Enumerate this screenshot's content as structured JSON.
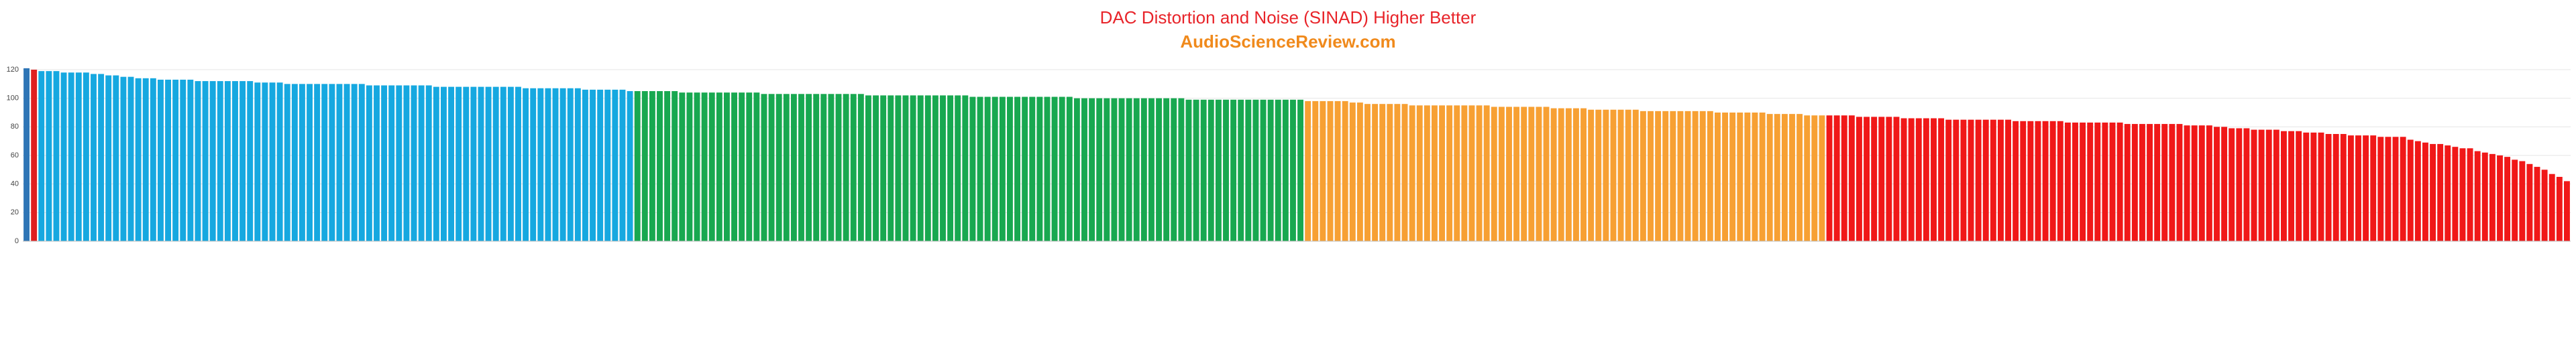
{
  "chart_data": {
    "type": "bar",
    "title": "DAC Distortion and Noise (SINAD) Higher Better",
    "subtitle": "AudioScienceReview.com",
    "ylim": [
      0,
      120
    ],
    "yticks": [
      0,
      20,
      40,
      60,
      80,
      100,
      120
    ],
    "grid": true,
    "series": [
      {
        "color": "#2e75b6",
        "values": [
          121
        ]
      },
      {
        "color": "#e02020",
        "values": [
          120
        ]
      },
      {
        "color": "#16a8e0",
        "values": [
          119,
          119,
          119,
          118,
          118,
          118,
          118,
          117,
          117,
          116,
          116,
          115,
          115,
          114,
          114,
          114,
          113,
          113,
          113,
          113,
          113,
          112,
          112,
          112,
          112,
          112,
          112,
          112,
          112,
          111,
          111,
          111,
          111,
          110,
          110,
          110,
          110,
          110,
          110,
          110,
          110,
          110,
          110,
          110,
          109,
          109,
          109,
          109,
          109,
          109,
          109,
          109,
          109,
          108,
          108,
          108,
          108,
          108,
          108,
          108,
          108,
          108,
          108,
          108,
          108,
          107,
          107,
          107,
          107,
          107,
          107,
          107,
          107,
          106,
          106,
          106,
          106,
          106,
          106,
          105
        ]
      },
      {
        "color": "#18a850",
        "values": [
          105,
          105,
          105,
          105,
          105,
          105,
          104,
          104,
          104,
          104,
          104,
          104,
          104,
          104,
          104,
          104,
          104,
          103,
          103,
          103,
          103,
          103,
          103,
          103,
          103,
          103,
          103,
          103,
          103,
          103,
          103,
          102,
          102,
          102,
          102,
          102,
          102,
          102,
          102,
          102,
          102,
          102,
          102,
          102,
          102,
          101,
          101,
          101,
          101,
          101,
          101,
          101,
          101,
          101,
          101,
          101,
          101,
          101,
          101,
          100,
          100,
          100,
          100,
          100,
          100,
          100,
          100,
          100,
          100,
          100,
          100,
          100,
          100,
          100,
          99,
          99,
          99,
          99,
          99,
          99,
          99,
          99,
          99,
          99,
          99,
          99,
          99,
          99,
          99,
          99
        ]
      },
      {
        "color": "#f7a033",
        "values": [
          98,
          98,
          98,
          98,
          98,
          98,
          97,
          97,
          96,
          96,
          96,
          96,
          96,
          96,
          95,
          95,
          95,
          95,
          95,
          95,
          95,
          95,
          95,
          95,
          95,
          94,
          94,
          94,
          94,
          94,
          94,
          94,
          94,
          93,
          93,
          93,
          93,
          93,
          92,
          92,
          92,
          92,
          92,
          92,
          92,
          91,
          91,
          91,
          91,
          91,
          91,
          91,
          91,
          91,
          91,
          90,
          90,
          90,
          90,
          90,
          90,
          90,
          89,
          89,
          89,
          89,
          89,
          88,
          88,
          88
        ]
      },
      {
        "color": "#f01818",
        "values": [
          88,
          88,
          88,
          88,
          87,
          87,
          87,
          87,
          87,
          87,
          86,
          86,
          86,
          86,
          86,
          86,
          85,
          85,
          85,
          85,
          85,
          85,
          85,
          85,
          85,
          84,
          84,
          84,
          84,
          84,
          84,
          84,
          83,
          83,
          83,
          83,
          83,
          83,
          83,
          83,
          82,
          82,
          82,
          82,
          82,
          82,
          82,
          82,
          81,
          81,
          81,
          81,
          80,
          80,
          79,
          79,
          79,
          78,
          78,
          78,
          78,
          77,
          77,
          77,
          76,
          76,
          76,
          75,
          75,
          75,
          74,
          74,
          74,
          74,
          73,
          73,
          73,
          73,
          71,
          70,
          69,
          68,
          68,
          67,
          66,
          65,
          65,
          63,
          62,
          61,
          60,
          59,
          57,
          56,
          54,
          52,
          50,
          47,
          45,
          42
        ]
      }
    ]
  }
}
